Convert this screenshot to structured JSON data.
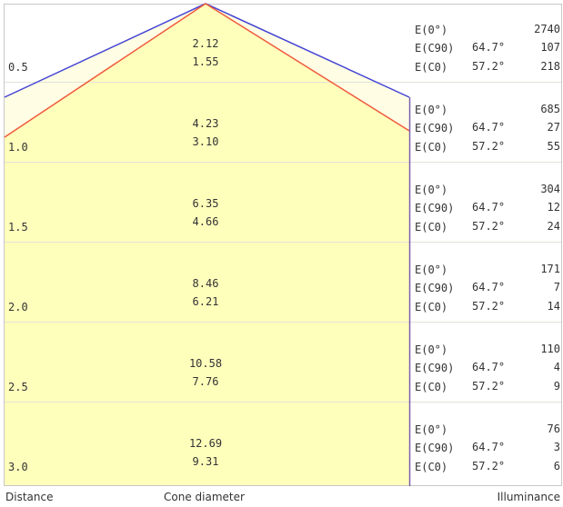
{
  "footer": {
    "distance": "Distance",
    "cone_diameter": "Cone diameter",
    "illuminance": "Illuminance"
  },
  "colors": {
    "fill": "#ffffbc",
    "fill_outer": "#fffee4",
    "beam_c90": "#4444d4",
    "beam_c0": "#f05a3c",
    "panel_border": "#7b5fb0",
    "divider": "#e2e2d8"
  },
  "rows": [
    {
      "distance": "0.5",
      "d1": "2.12",
      "d2": "1.55",
      "e0_label": "E(0°)",
      "e0": "2740",
      "c90_label": "E(C90)",
      "c90_angle": "64.7°",
      "c90": "107",
      "c0_label": "E(C0)",
      "c0_angle": "57.2°",
      "c0": "218"
    },
    {
      "distance": "1.0",
      "d1": "4.23",
      "d2": "3.10",
      "e0_label": "E(0°)",
      "e0": "685",
      "c90_label": "E(C90)",
      "c90_angle": "64.7°",
      "c90": "27",
      "c0_label": "E(C0)",
      "c0_angle": "57.2°",
      "c0": "55"
    },
    {
      "distance": "1.5",
      "d1": "6.35",
      "d2": "4.66",
      "e0_label": "E(0°)",
      "e0": "304",
      "c90_label": "E(C90)",
      "c90_angle": "64.7°",
      "c90": "12",
      "c0_label": "E(C0)",
      "c0_angle": "57.2°",
      "c0": "24"
    },
    {
      "distance": "2.0",
      "d1": "8.46",
      "d2": "6.21",
      "e0_label": "E(0°)",
      "e0": "171",
      "c90_label": "E(C90)",
      "c90_angle": "64.7°",
      "c90": "7",
      "c0_label": "E(C0)",
      "c0_angle": "57.2°",
      "c0": "14"
    },
    {
      "distance": "2.5",
      "d1": "10.58",
      "d2": "7.76",
      "e0_label": "E(0°)",
      "e0": "110",
      "c90_label": "E(C90)",
      "c90_angle": "64.7°",
      "c90": "4",
      "c0_label": "E(C0)",
      "c0_angle": "57.2°",
      "c0": "9"
    },
    {
      "distance": "3.0",
      "d1": "12.69",
      "d2": "9.31",
      "e0_label": "E(0°)",
      "e0": "76",
      "c90_label": "E(C90)",
      "c90_angle": "64.7°",
      "c90": "3",
      "c0_label": "E(C0)",
      "c0_angle": "57.2°",
      "c0": "6"
    }
  ]
}
